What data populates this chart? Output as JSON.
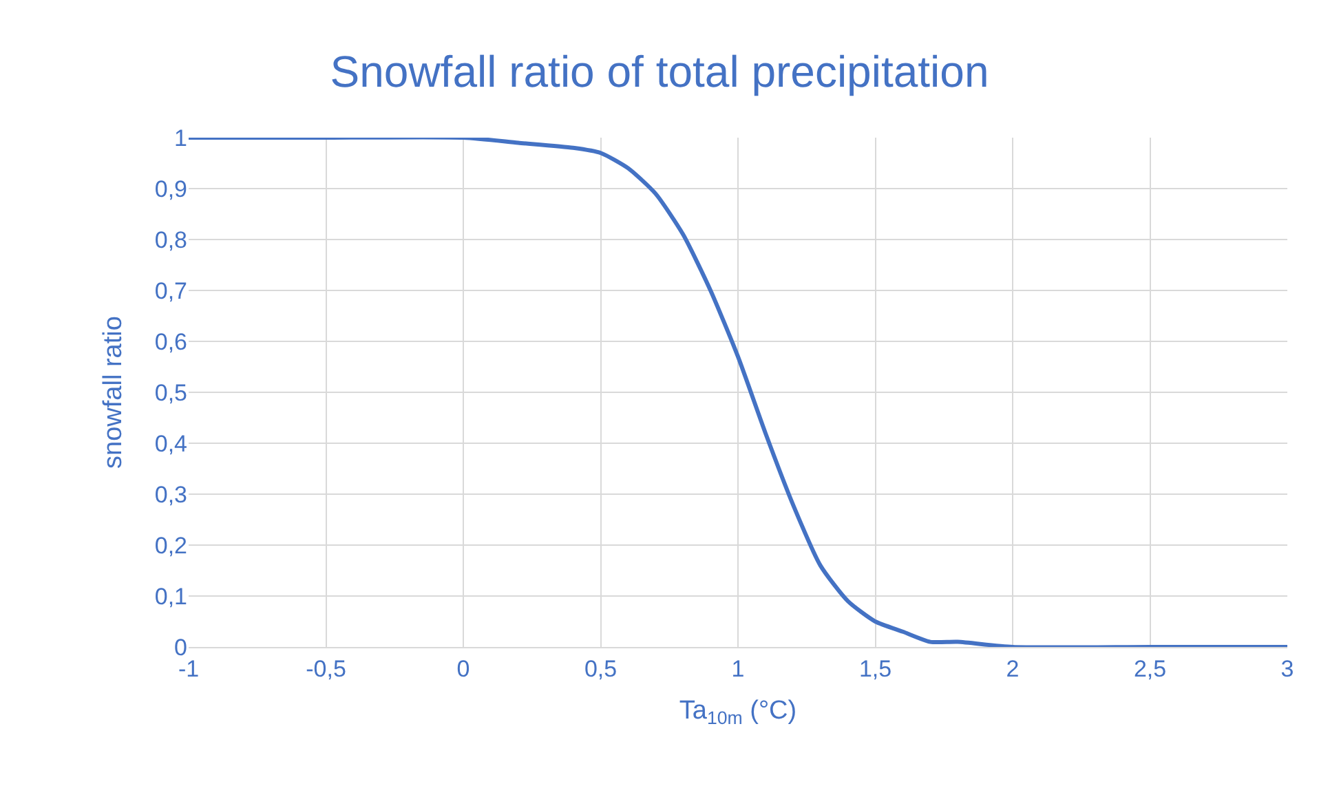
{
  "chart_data": {
    "type": "line",
    "title": "Snowfall ratio of total precipitation",
    "xlabel": "Ta$_{10m}$ (°C)",
    "ylabel": "snowfall ratio",
    "x": [
      -1,
      -0.5,
      0,
      0.2,
      0.4,
      0.5,
      0.6,
      0.7,
      0.8,
      0.9,
      1.0,
      1.1,
      1.2,
      1.3,
      1.4,
      1.5,
      1.6,
      1.7,
      1.8,
      2,
      2.5,
      3
    ],
    "series": [
      {
        "color": "#4472c4",
        "values": [
          1,
          1,
          1,
          0.99,
          0.98,
          0.97,
          0.94,
          0.89,
          0.81,
          0.7,
          0.57,
          0.42,
          0.28,
          0.16,
          0.09,
          0.05,
          0.03,
          0.01,
          0.01,
          0,
          0,
          0
        ]
      }
    ],
    "xlim": [
      -1,
      3
    ],
    "xticks": [
      -1,
      {
        "value": -0.5,
        "label": "-0,5"
      },
      0,
      {
        "value": 0.5,
        "label": "0,5"
      },
      1,
      {
        "value": 1.5,
        "label": "1,5"
      },
      2,
      {
        "value": 2.5,
        "label": "2,5"
      },
      3
    ],
    "ylim": [
      0,
      1
    ],
    "yticks": [
      0,
      {
        "value": 0.1,
        "label": "0,1"
      },
      {
        "value": 0.2,
        "label": "0,2"
      },
      {
        "value": 0.3,
        "label": "0,3"
      },
      {
        "value": 0.4,
        "label": "0,4"
      },
      {
        "value": 0.5,
        "label": "0,5"
      },
      {
        "value": 0.6,
        "label": "0,6"
      },
      {
        "value": 0.7,
        "label": "0,7"
      },
      {
        "value": 0.8,
        "label": "0,8"
      },
      {
        "value": 0.9,
        "label": "0,9"
      },
      1
    ],
    "grid": true,
    "legend": false,
    "marker": "none",
    "line_style": "solid"
  }
}
